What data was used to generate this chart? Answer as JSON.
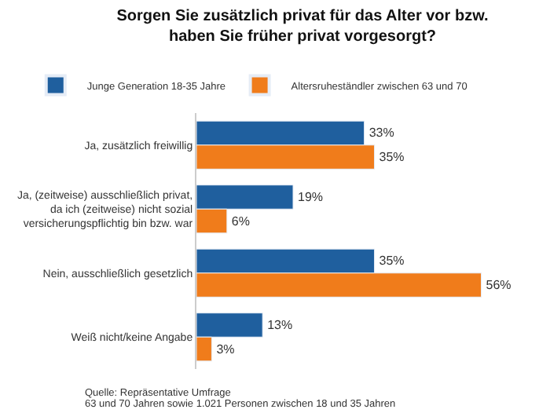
{
  "chart_data": {
    "type": "bar",
    "orientation": "horizontal",
    "title": "Sorgen Sie zusätzlich privat für das Alter vor bzw. haben Sie früher privat vorgesorgt?",
    "categories": [
      "Ja, zusätzlich freiwillig",
      "Ja, (zeitweise) ausschließlich privat, da ich (zeitweise) nicht sozial versicherungspflichtig bin bzw. war",
      "Nein, ausschließlich gesetzlich",
      "Weiß nicht/keine Angabe"
    ],
    "series": [
      {
        "name": "Junge Generation 18-35 Jahre",
        "color": "#1f5f9e",
        "values": [
          33,
          19,
          35,
          13
        ],
        "value_labels": [
          "33%",
          "19%",
          "35%",
          "13%"
        ]
      },
      {
        "name": "Altersruheständler zwischen 63 und 70",
        "color": "#f07c1b",
        "values": [
          35,
          6,
          56,
          3
        ],
        "value_labels": [
          "35%",
          "6%",
          "56%",
          "3%"
        ]
      }
    ],
    "legend": "top",
    "annotations": [
      "Quelle: Repräsentative Umfrage",
      "63 und 70 Jahren sowie 1.021 Personen zwischen 18 und 35 Jahren"
    ]
  }
}
